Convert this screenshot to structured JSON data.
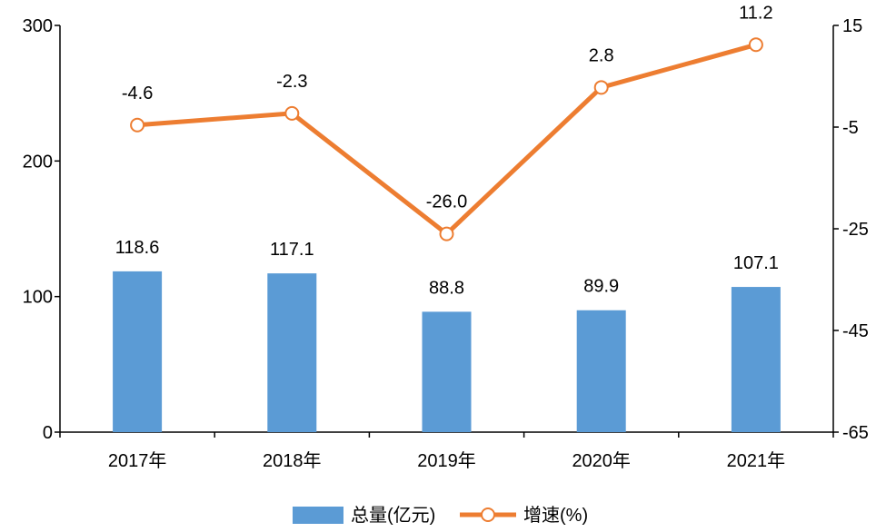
{
  "chart_data": {
    "type": "bar",
    "categories": [
      "2017年",
      "2018年",
      "2019年",
      "2020年",
      "2021年"
    ],
    "series": [
      {
        "name": "总量(亿元)",
        "type": "bar",
        "axis": "left",
        "color": "#5b9bd5",
        "values": [
          118.6,
          117.1,
          88.8,
          89.9,
          107.1
        ],
        "labels": [
          "118.6",
          "117.1",
          "88.8",
          "89.9",
          "107.1"
        ]
      },
      {
        "name": "增速(%)",
        "type": "line",
        "axis": "right",
        "color": "#ed7d31",
        "marker": "hollow-circle",
        "values": [
          -4.6,
          -2.3,
          -26.0,
          2.8,
          11.2
        ],
        "labels": [
          "-4.6",
          "-2.3",
          "-26.0",
          "2.8",
          "11.2"
        ]
      }
    ],
    "y_left": {
      "min": 0,
      "max": 300,
      "ticks": [
        "0",
        "100",
        "200",
        "300"
      ]
    },
    "y_right": {
      "min": -65,
      "max": 15,
      "ticks": [
        "-65",
        "-45",
        "-25",
        "-5",
        "15"
      ]
    },
    "legend": {
      "position": "bottom",
      "items": [
        "总量(亿元)",
        "增速(%)"
      ]
    },
    "grid": false
  }
}
